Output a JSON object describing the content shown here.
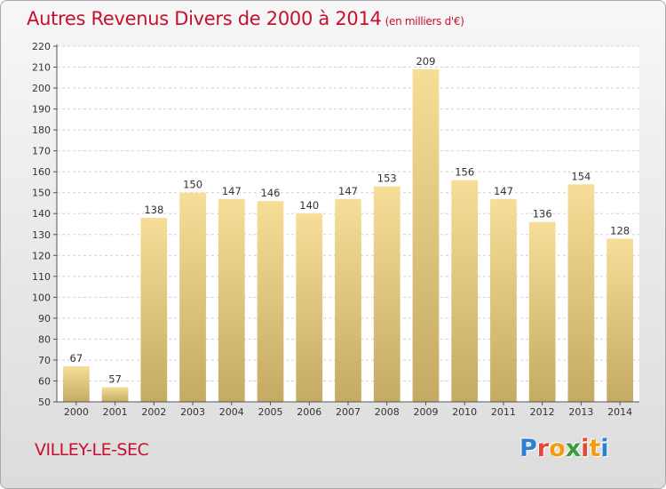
{
  "title": "Autres Revenus Divers de 2000 à 2014",
  "subtitle": "(en milliers d'€)",
  "place": "VILLEY-LE-SEC",
  "logo": {
    "letters": [
      "P",
      "r",
      "o",
      "x",
      "i",
      "t",
      "i"
    ],
    "colors": [
      "#2d7fd1",
      "#e2493a",
      "#f39c12",
      "#3a9b3a",
      "#e2493a",
      "#f39c12",
      "#2d7fd1"
    ]
  },
  "colors": {
    "title": "#c8102e",
    "bar_top": "#f7de98",
    "bar_bottom": "#c4aa62",
    "grid": "#d0d0d0"
  },
  "chart_data": {
    "type": "bar",
    "categories": [
      "2000",
      "2001",
      "2002",
      "2003",
      "2004",
      "2005",
      "2006",
      "2007",
      "2008",
      "2009",
      "2010",
      "2011",
      "2012",
      "2013",
      "2014"
    ],
    "values": [
      67,
      57,
      138,
      150,
      147,
      146,
      140,
      147,
      153,
      209,
      156,
      147,
      136,
      154,
      128
    ],
    "yticks": [
      50,
      60,
      70,
      80,
      90,
      100,
      110,
      120,
      130,
      140,
      150,
      160,
      170,
      180,
      190,
      200,
      210,
      220
    ],
    "ylim": [
      50,
      220
    ],
    "grid": true,
    "data_labels": true
  }
}
